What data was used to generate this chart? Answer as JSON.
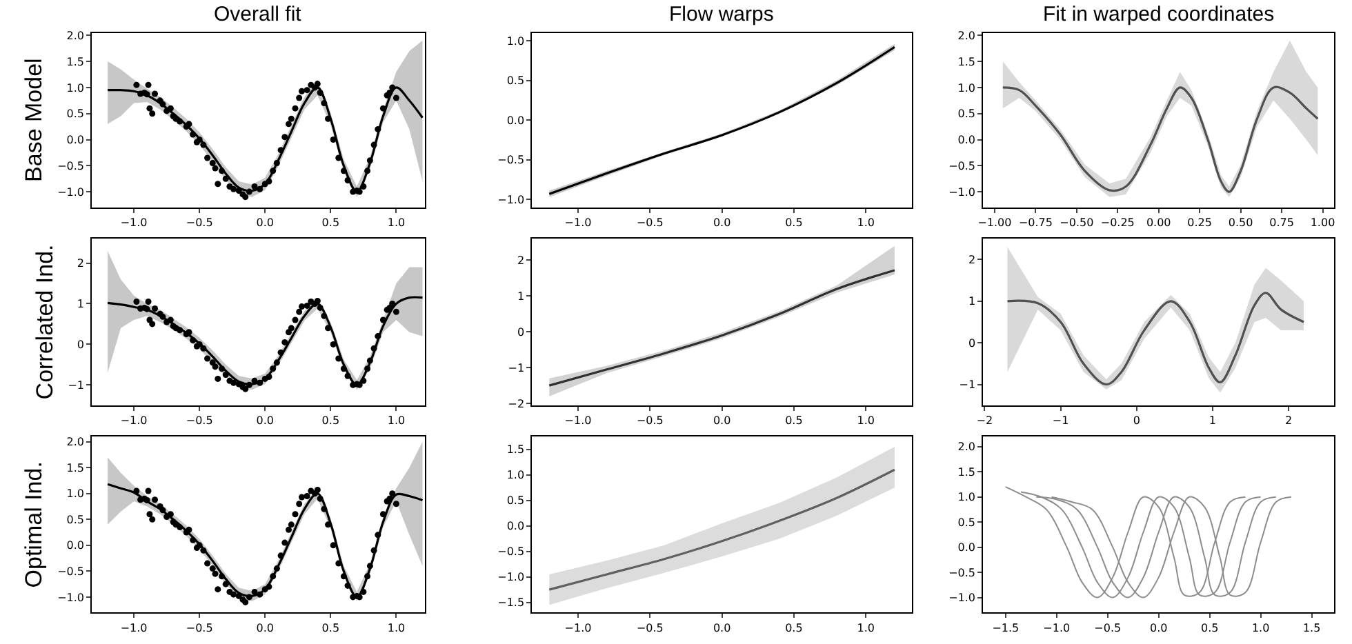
{
  "chart_data": [
    {
      "type": "line",
      "title": "Overall fit",
      "ylabel": "Base Model",
      "xlim": [
        -1.32,
        1.22
      ],
      "xticks": [
        {
          "value": -1,
          "label": "−1.0"
        },
        {
          "value": -0.5,
          "label": "−0.5"
        },
        {
          "value": 0,
          "label": "0.0"
        },
        {
          "value": 0.5,
          "label": "0.5"
        },
        {
          "value": 1,
          "label": "1.0"
        }
      ],
      "ylim": [
        -1.3,
        2.05
      ],
      "yticks": [
        {
          "value": -1,
          "label": "−1.0"
        },
        {
          "value": -0.5,
          "label": "−0.5"
        },
        {
          "value": 0,
          "label": "0.0"
        },
        {
          "value": 0.5,
          "label": "0.5"
        },
        {
          "value": 1,
          "label": "1.0"
        },
        {
          "value": 1.5,
          "label": "1.5"
        },
        {
          "value": 2,
          "label": "2.0"
        }
      ],
      "series": [
        {
          "color": "#000000",
          "x": [
            -1.2,
            -1.1,
            -1.0,
            -0.9,
            -0.8,
            -0.7,
            -0.6,
            -0.5,
            -0.4,
            -0.3,
            -0.2,
            -0.1,
            0.0,
            0.1,
            0.2,
            0.3,
            0.4,
            0.5,
            0.6,
            0.7,
            0.8,
            0.9,
            1.0,
            1.1,
            1.2
          ],
          "values": [
            0.95,
            0.95,
            0.93,
            0.85,
            0.7,
            0.5,
            0.28,
            0.02,
            -0.3,
            -0.65,
            -0.92,
            -0.98,
            -0.85,
            -0.4,
            0.15,
            0.7,
            1.0,
            0.4,
            -0.5,
            -1.0,
            -0.45,
            0.45,
            1.0,
            0.75,
            0.42
          ],
          "lower": [
            0.3,
            0.45,
            0.7,
            0.72,
            0.58,
            0.38,
            0.16,
            -0.1,
            -0.42,
            -0.77,
            -1.04,
            -1.1,
            -0.97,
            -0.52,
            0.03,
            0.58,
            0.85,
            0.28,
            -0.62,
            -1.1,
            -0.57,
            0.33,
            0.75,
            0.2,
            -0.8
          ],
          "upper": [
            1.5,
            1.35,
            1.15,
            0.98,
            0.82,
            0.62,
            0.4,
            0.14,
            -0.18,
            -0.53,
            -0.8,
            -0.86,
            -0.73,
            -0.28,
            0.27,
            0.82,
            1.15,
            0.52,
            -0.38,
            -0.9,
            -0.33,
            0.57,
            1.3,
            1.7,
            1.9
          ]
        },
        {
          "type": "scatter",
          "marker": "circle",
          "color": "#000000",
          "x": [
            -0.98,
            -0.95,
            -0.92,
            -0.9,
            -0.89,
            -0.88,
            -0.86,
            -0.84,
            -0.8,
            -0.78,
            -0.75,
            -0.72,
            -0.7,
            -0.68,
            -0.65,
            -0.6,
            -0.58,
            -0.55,
            -0.52,
            -0.5,
            -0.47,
            -0.44,
            -0.4,
            -0.38,
            -0.36,
            -0.33,
            -0.3,
            -0.27,
            -0.24,
            -0.2,
            -0.17,
            -0.15,
            -0.12,
            -0.08,
            -0.04,
            0.0,
            0.03,
            0.06,
            0.09,
            0.12,
            0.15,
            0.18,
            0.2,
            0.23,
            0.26,
            0.28,
            0.32,
            0.35,
            0.38,
            0.4,
            0.42,
            0.45,
            0.48,
            0.52,
            0.56,
            0.6,
            0.63,
            0.67,
            0.7,
            0.72,
            0.75,
            0.78,
            0.8,
            0.83,
            0.86,
            0.9,
            0.93,
            0.95,
            0.97,
            1.0
          ],
          "values": [
            1.05,
            0.88,
            0.9,
            0.87,
            1.05,
            0.6,
            0.5,
            0.88,
            0.75,
            0.68,
            0.55,
            0.6,
            0.45,
            0.4,
            0.35,
            0.25,
            0.3,
            0.1,
            -0.05,
            0.0,
            -0.1,
            -0.35,
            -0.45,
            -0.55,
            -0.85,
            -0.6,
            -0.75,
            -0.9,
            -0.95,
            -0.98,
            -1.05,
            -1.1,
            -1.0,
            -0.9,
            -0.95,
            -0.85,
            -0.8,
            -0.6,
            -0.45,
            -0.2,
            0.05,
            0.3,
            0.4,
            0.6,
            0.8,
            0.93,
            0.95,
            1.05,
            1.0,
            1.07,
            0.9,
            0.7,
            0.4,
            0.0,
            -0.35,
            -0.6,
            -0.78,
            -1.0,
            -0.98,
            -1.0,
            -0.9,
            -0.6,
            -0.4,
            -0.1,
            0.2,
            0.6,
            0.85,
            0.9,
            1.0,
            0.8
          ]
        }
      ]
    },
    {
      "type": "line",
      "title": "Flow warps",
      "xlim": [
        -1.32,
        1.32
      ],
      "xticks": [
        {
          "value": -1,
          "label": "−1.0"
        },
        {
          "value": -0.5,
          "label": "−0.5"
        },
        {
          "value": 0,
          "label": "0.0"
        },
        {
          "value": 0.5,
          "label": "0.5"
        },
        {
          "value": 1,
          "label": "1.0"
        }
      ],
      "ylim": [
        -1.1,
        1.1
      ],
      "yticks": [
        {
          "value": -1,
          "label": "−1.0"
        },
        {
          "value": -0.5,
          "label": "−0.5"
        },
        {
          "value": 0,
          "label": "0.0"
        },
        {
          "value": 0.5,
          "label": "0.5"
        },
        {
          "value": 1,
          "label": "1.0"
        }
      ],
      "series": [
        {
          "color": "#000000",
          "x": [
            -1.2,
            -0.8,
            -0.4,
            0.0,
            0.4,
            0.8,
            1.2
          ],
          "values": [
            -0.93,
            -0.67,
            -0.42,
            -0.19,
            0.1,
            0.47,
            0.92
          ],
          "lower": [
            -0.97,
            -0.7,
            -0.44,
            -0.21,
            0.08,
            0.44,
            0.88
          ],
          "upper": [
            -0.89,
            -0.64,
            -0.4,
            -0.17,
            0.12,
            0.5,
            0.96
          ]
        }
      ]
    },
    {
      "type": "line",
      "title": "Fit in warped coordinates",
      "xlim": [
        -1.07,
        1.07
      ],
      "xticks": [
        {
          "value": -1,
          "label": "−1.00"
        },
        {
          "value": -0.75,
          "label": "−0.75"
        },
        {
          "value": -0.5,
          "label": "−0.50"
        },
        {
          "value": -0.25,
          "label": "−0.25"
        },
        {
          "value": 0,
          "label": "0.00"
        },
        {
          "value": 0.25,
          "label": "0.25"
        },
        {
          "value": 0.5,
          "label": "0.50"
        },
        {
          "value": 0.75,
          "label": "0.75"
        },
        {
          "value": 1,
          "label": "1.00"
        }
      ],
      "ylim": [
        -1.3,
        2.05
      ],
      "yticks": [
        {
          "value": -1,
          "label": "−1.0"
        },
        {
          "value": -0.5,
          "label": "−0.5"
        },
        {
          "value": 0,
          "label": "0.0"
        },
        {
          "value": 0.5,
          "label": "0.5"
        },
        {
          "value": 1,
          "label": "1.0"
        },
        {
          "value": 1.5,
          "label": "1.5"
        },
        {
          "value": 2,
          "label": "2.0"
        }
      ],
      "series": [
        {
          "color": "#505050",
          "x": [
            -0.95,
            -0.85,
            -0.75,
            -0.6,
            -0.45,
            -0.3,
            -0.2,
            -0.05,
            0.05,
            0.13,
            0.2,
            0.3,
            0.38,
            0.43,
            0.5,
            0.6,
            0.7,
            0.8,
            0.9,
            0.97
          ],
          "values": [
            1.0,
            0.95,
            0.65,
            0.1,
            -0.6,
            -0.97,
            -0.9,
            -0.1,
            0.6,
            1.0,
            0.8,
            0.0,
            -0.8,
            -1.0,
            -0.6,
            0.4,
            1.0,
            0.9,
            0.6,
            0.4
          ],
          "lower": [
            0.6,
            0.8,
            0.55,
            0.0,
            -0.72,
            -1.1,
            -1.05,
            -0.25,
            0.45,
            0.8,
            0.65,
            -0.12,
            -0.92,
            -1.1,
            -0.72,
            0.25,
            0.75,
            0.4,
            0.0,
            -0.3
          ],
          "upper": [
            1.5,
            1.1,
            0.75,
            0.2,
            -0.48,
            -0.84,
            -0.75,
            0.05,
            0.75,
            1.3,
            0.95,
            0.12,
            -0.68,
            -0.9,
            -0.48,
            0.55,
            1.3,
            1.9,
            1.3,
            1.0
          ]
        }
      ]
    },
    {
      "type": "line",
      "ylabel": "Correlated Ind.",
      "xlim": [
        -1.32,
        1.22
      ],
      "xticks": [
        {
          "value": -1,
          "label": "−1.0"
        },
        {
          "value": -0.5,
          "label": "−0.5"
        },
        {
          "value": 0,
          "label": "0.0"
        },
        {
          "value": 0.5,
          "label": "0.5"
        },
        {
          "value": 1,
          "label": "1.0"
        }
      ],
      "ylim": [
        -1.5,
        2.6
      ],
      "yticks": [
        {
          "value": -1,
          "label": "−1"
        },
        0,
        1,
        2
      ],
      "series": [
        {
          "color": "#000000",
          "x": [
            -1.2,
            -1.1,
            -1.0,
            -0.9,
            -0.8,
            -0.7,
            -0.6,
            -0.5,
            -0.4,
            -0.3,
            -0.2,
            -0.1,
            0.0,
            0.1,
            0.2,
            0.3,
            0.4,
            0.5,
            0.6,
            0.7,
            0.8,
            0.9,
            1.0,
            1.1,
            1.2
          ],
          "values": [
            1.02,
            0.98,
            0.92,
            0.85,
            0.7,
            0.5,
            0.28,
            0.02,
            -0.3,
            -0.65,
            -0.92,
            -0.98,
            -0.85,
            -0.4,
            0.15,
            0.7,
            1.0,
            0.42,
            -0.5,
            -1.0,
            -0.45,
            0.45,
            1.0,
            1.15,
            1.15
          ],
          "lower": [
            -0.7,
            0.4,
            0.6,
            0.7,
            0.55,
            0.36,
            0.14,
            -0.12,
            -0.45,
            -0.8,
            -1.06,
            -1.12,
            -0.98,
            -0.52,
            0.03,
            0.58,
            0.88,
            0.3,
            -0.62,
            -1.12,
            -0.6,
            0.3,
            0.6,
            0.3,
            0.2
          ],
          "upper": [
            2.3,
            1.6,
            1.2,
            1.0,
            0.85,
            0.64,
            0.42,
            0.16,
            -0.15,
            -0.5,
            -0.78,
            -0.84,
            -0.72,
            -0.28,
            0.27,
            0.82,
            1.15,
            0.54,
            -0.38,
            -0.88,
            -0.3,
            0.6,
            1.5,
            1.9,
            1.9
          ]
        },
        {
          "type": "scatter",
          "marker": "circle",
          "color": "#000000",
          "x": [
            -0.98,
            -0.95,
            -0.92,
            -0.9,
            -0.89,
            -0.88,
            -0.86,
            -0.84,
            -0.8,
            -0.78,
            -0.75,
            -0.72,
            -0.7,
            -0.68,
            -0.65,
            -0.6,
            -0.58,
            -0.55,
            -0.52,
            -0.5,
            -0.47,
            -0.44,
            -0.4,
            -0.38,
            -0.36,
            -0.33,
            -0.3,
            -0.27,
            -0.24,
            -0.2,
            -0.17,
            -0.15,
            -0.12,
            -0.08,
            -0.04,
            0.0,
            0.03,
            0.06,
            0.09,
            0.12,
            0.15,
            0.18,
            0.2,
            0.23,
            0.26,
            0.28,
            0.32,
            0.35,
            0.38,
            0.4,
            0.42,
            0.45,
            0.48,
            0.52,
            0.56,
            0.6,
            0.63,
            0.67,
            0.7,
            0.72,
            0.75,
            0.78,
            0.8,
            0.83,
            0.86,
            0.9,
            0.93,
            0.95,
            0.97,
            1.0
          ],
          "values": [
            1.05,
            0.88,
            0.9,
            0.87,
            1.05,
            0.6,
            0.5,
            0.88,
            0.75,
            0.68,
            0.55,
            0.6,
            0.45,
            0.4,
            0.35,
            0.25,
            0.3,
            0.1,
            -0.05,
            0.0,
            -0.1,
            -0.35,
            -0.45,
            -0.55,
            -0.85,
            -0.6,
            -0.75,
            -0.9,
            -0.95,
            -0.98,
            -1.05,
            -1.1,
            -1.0,
            -0.9,
            -0.95,
            -0.85,
            -0.8,
            -0.6,
            -0.45,
            -0.2,
            0.05,
            0.3,
            0.4,
            0.6,
            0.8,
            0.93,
            0.95,
            1.05,
            1.0,
            1.07,
            0.9,
            0.7,
            0.4,
            0.0,
            -0.35,
            -0.6,
            -0.78,
            -1.0,
            -0.98,
            -1.0,
            -0.9,
            -0.6,
            -0.4,
            -0.1,
            0.2,
            0.6,
            0.85,
            0.9,
            1.0,
            0.8
          ]
        }
      ]
    },
    {
      "type": "line",
      "xlim": [
        -1.32,
        1.32
      ],
      "xticks": [
        {
          "value": -1,
          "label": "−1.0"
        },
        {
          "value": -0.5,
          "label": "−0.5"
        },
        {
          "value": 0,
          "label": "0.0"
        },
        {
          "value": 0.5,
          "label": "0.5"
        },
        {
          "value": 1,
          "label": "1.0"
        }
      ],
      "ylim": [
        -2.05,
        2.6
      ],
      "yticks": [
        {
          "value": -2,
          "label": "−2"
        },
        {
          "value": -1,
          "label": "−1"
        },
        0,
        1,
        2
      ],
      "series": [
        {
          "color": "#303030",
          "x": [
            -1.2,
            -0.8,
            -0.4,
            0.0,
            0.4,
            0.8,
            1.2
          ],
          "values": [
            -1.5,
            -1.05,
            -0.6,
            -0.1,
            0.5,
            1.2,
            1.72
          ],
          "lower": [
            -1.8,
            -1.15,
            -0.68,
            -0.18,
            0.42,
            1.1,
            1.6
          ],
          "upper": [
            -1.3,
            -0.95,
            -0.52,
            -0.02,
            0.58,
            1.3,
            2.4
          ]
        }
      ]
    },
    {
      "type": "line",
      "xlim": [
        -2.02,
        2.6
      ],
      "xticks": [
        {
          "value": -2,
          "label": "−2"
        },
        {
          "value": -1,
          "label": "−1"
        },
        0,
        1,
        2
      ],
      "ylim": [
        -1.5,
        2.5
      ],
      "yticks": [
        {
          "value": -1,
          "label": "−1"
        },
        0,
        1,
        2
      ],
      "series": [
        {
          "color": "#505050",
          "x": [
            -1.7,
            -1.3,
            -1.0,
            -0.7,
            -0.4,
            -0.2,
            0.1,
            0.45,
            0.7,
            0.95,
            1.1,
            1.3,
            1.55,
            1.7,
            1.9,
            2.2
          ],
          "values": [
            1.0,
            0.95,
            0.5,
            -0.5,
            -1.0,
            -0.7,
            0.3,
            1.0,
            0.5,
            -0.6,
            -0.95,
            -0.3,
            0.9,
            1.2,
            0.8,
            0.5
          ],
          "lower": [
            -0.7,
            0.8,
            0.3,
            -0.7,
            -1.12,
            -0.9,
            0.1,
            0.85,
            0.3,
            -0.85,
            -1.2,
            -0.6,
            0.5,
            0.6,
            0.3,
            0.3
          ],
          "upper": [
            2.3,
            1.1,
            0.7,
            -0.3,
            -0.88,
            -0.5,
            0.5,
            1.15,
            0.7,
            -0.35,
            -0.7,
            0.0,
            1.4,
            1.8,
            1.5,
            1.0
          ]
        }
      ]
    },
    {
      "type": "line",
      "ylabel": "Optimal Ind.",
      "xlim": [
        -1.32,
        1.22
      ],
      "xticks": [
        {
          "value": -1,
          "label": "−1.0"
        },
        {
          "value": -0.5,
          "label": "−0.5"
        },
        {
          "value": 0,
          "label": "0.0"
        },
        {
          "value": 0.5,
          "label": "0.5"
        },
        {
          "value": 1,
          "label": "1.0"
        }
      ],
      "ylim": [
        -1.3,
        2.1
      ],
      "yticks": [
        {
          "value": -1,
          "label": "−1.0"
        },
        {
          "value": -0.5,
          "label": "−0.5"
        },
        {
          "value": 0,
          "label": "0.0"
        },
        {
          "value": 0.5,
          "label": "0.5"
        },
        {
          "value": 1,
          "label": "1.0"
        },
        {
          "value": 1.5,
          "label": "1.5"
        },
        {
          "value": 2,
          "label": "2.0"
        }
      ],
      "series": [
        {
          "color": "#000000",
          "x": [
            -1.2,
            -1.1,
            -1.0,
            -0.9,
            -0.8,
            -0.7,
            -0.6,
            -0.5,
            -0.4,
            -0.3,
            -0.2,
            -0.1,
            0.0,
            0.1,
            0.2,
            0.3,
            0.4,
            0.5,
            0.6,
            0.7,
            0.8,
            0.9,
            1.0,
            1.1,
            1.2
          ],
          "values": [
            1.18,
            1.1,
            1.02,
            0.85,
            0.7,
            0.5,
            0.28,
            0.02,
            -0.3,
            -0.65,
            -0.92,
            -0.98,
            -0.85,
            -0.4,
            0.15,
            0.7,
            1.0,
            0.42,
            -0.5,
            -1.0,
            -0.45,
            0.45,
            0.98,
            0.95,
            0.87
          ],
          "lower": [
            0.4,
            0.65,
            0.85,
            0.75,
            0.6,
            0.4,
            0.18,
            -0.08,
            -0.4,
            -0.75,
            -1.02,
            -1.08,
            -0.95,
            -0.5,
            0.05,
            0.6,
            0.9,
            0.32,
            -0.6,
            -1.08,
            -0.55,
            0.35,
            0.85,
            0.2,
            -0.4
          ],
          "upper": [
            1.7,
            1.4,
            1.15,
            0.95,
            0.8,
            0.6,
            0.38,
            0.12,
            -0.2,
            -0.55,
            -0.82,
            -0.88,
            -0.75,
            -0.3,
            0.25,
            0.8,
            1.1,
            0.52,
            -0.4,
            -0.9,
            -0.35,
            0.55,
            1.1,
            1.5,
            2.0
          ]
        },
        {
          "type": "scatter",
          "marker": "circle",
          "color": "#000000",
          "x": [
            -0.98,
            -0.95,
            -0.92,
            -0.9,
            -0.89,
            -0.88,
            -0.86,
            -0.84,
            -0.8,
            -0.78,
            -0.75,
            -0.72,
            -0.7,
            -0.68,
            -0.65,
            -0.6,
            -0.58,
            -0.55,
            -0.52,
            -0.5,
            -0.47,
            -0.44,
            -0.4,
            -0.38,
            -0.36,
            -0.33,
            -0.3,
            -0.27,
            -0.24,
            -0.2,
            -0.17,
            -0.15,
            -0.12,
            -0.08,
            -0.04,
            0.0,
            0.03,
            0.06,
            0.09,
            0.12,
            0.15,
            0.18,
            0.2,
            0.23,
            0.26,
            0.28,
            0.32,
            0.35,
            0.38,
            0.4,
            0.42,
            0.45,
            0.48,
            0.52,
            0.56,
            0.6,
            0.63,
            0.67,
            0.7,
            0.72,
            0.75,
            0.78,
            0.8,
            0.83,
            0.86,
            0.9,
            0.93,
            0.95,
            0.97,
            1.0
          ],
          "values": [
            1.05,
            0.88,
            0.9,
            0.87,
            1.05,
            0.6,
            0.5,
            0.88,
            0.75,
            0.68,
            0.55,
            0.6,
            0.45,
            0.4,
            0.35,
            0.25,
            0.3,
            0.1,
            -0.05,
            0.0,
            -0.1,
            -0.35,
            -0.45,
            -0.55,
            -0.85,
            -0.6,
            -0.75,
            -0.9,
            -0.95,
            -0.98,
            -1.05,
            -1.1,
            -1.0,
            -0.9,
            -0.95,
            -0.85,
            -0.8,
            -0.6,
            -0.45,
            -0.2,
            0.05,
            0.3,
            0.4,
            0.6,
            0.8,
            0.93,
            0.95,
            1.05,
            1.0,
            1.07,
            0.9,
            0.7,
            0.4,
            0.0,
            -0.35,
            -0.6,
            -0.78,
            -1.0,
            -0.98,
            -1.0,
            -0.9,
            -0.6,
            -0.4,
            -0.1,
            0.2,
            0.6,
            0.85,
            0.9,
            1.0,
            0.8
          ]
        }
      ]
    },
    {
      "type": "line",
      "xlim": [
        -1.32,
        1.32
      ],
      "xticks": [
        {
          "value": -1,
          "label": "−1.0"
        },
        {
          "value": -0.5,
          "label": "−0.5"
        },
        {
          "value": 0,
          "label": "0.0"
        },
        {
          "value": 0.5,
          "label": "0.5"
        },
        {
          "value": 1,
          "label": "1.0"
        }
      ],
      "ylim": [
        -1.7,
        1.75
      ],
      "yticks": [
        {
          "value": -1.5,
          "label": "−1.5"
        },
        {
          "value": -1,
          "label": "−1.0"
        },
        {
          "value": -0.5,
          "label": "−0.5"
        },
        {
          "value": 0,
          "label": "0.0"
        },
        {
          "value": 0.5,
          "label": "0.5"
        },
        {
          "value": 1,
          "label": "1.0"
        },
        {
          "value": 1.5,
          "label": "1.5"
        }
      ],
      "series": [
        {
          "color": "#606060",
          "x": [
            -1.2,
            -0.8,
            -0.4,
            0.0,
            0.4,
            0.8,
            1.2
          ],
          "values": [
            -1.25,
            -0.95,
            -0.65,
            -0.3,
            0.1,
            0.55,
            1.1
          ],
          "lower": [
            -1.55,
            -1.22,
            -0.92,
            -0.6,
            -0.25,
            0.2,
            0.75
          ],
          "upper": [
            -0.95,
            -0.68,
            -0.38,
            0.05,
            0.45,
            0.95,
            1.55
          ]
        }
      ]
    },
    {
      "type": "line",
      "xlim": [
        -1.72,
        1.72
      ],
      "xticks": [
        {
          "value": -1.5,
          "label": "−1.5"
        },
        {
          "value": -1,
          "label": "−1.0"
        },
        {
          "value": -0.5,
          "label": "−0.5"
        },
        {
          "value": 0,
          "label": "0.0"
        },
        {
          "value": 0.5,
          "label": "0.5"
        },
        {
          "value": 1,
          "label": "1.0"
        },
        {
          "value": 1.5,
          "label": "1.5"
        }
      ],
      "ylim": [
        -1.3,
        2.2
      ],
      "yticks": [
        {
          "value": -1,
          "label": "−1.0"
        },
        {
          "value": -0.5,
          "label": "−0.5"
        },
        {
          "value": 0,
          "label": "0.0"
        },
        {
          "value": 0.5,
          "label": "0.5"
        },
        {
          "value": 1,
          "label": "1.0"
        },
        {
          "value": 1.5,
          "label": "1.5"
        },
        {
          "value": 2,
          "label": "2.0"
        }
      ],
      "series": [
        {
          "color": "#8c8c8c",
          "x": [
            -1.5,
            -1.3,
            -1.1,
            -0.9,
            -0.75,
            -0.6,
            -0.45,
            -0.3,
            -0.15,
            0.0,
            0.15,
            0.25,
            0.4,
            0.55,
            0.7,
            0.85
          ],
          "values": [
            1.2,
            1.0,
            0.75,
            0.0,
            -0.7,
            -1.0,
            -0.6,
            0.3,
            1.0,
            0.8,
            -0.2,
            -0.95,
            -0.9,
            0.1,
            0.9,
            1.0
          ]
        },
        {
          "color": "#8c8c8c",
          "x": [
            -1.35,
            -1.15,
            -0.95,
            -0.75,
            -0.6,
            -0.45,
            -0.3,
            -0.15,
            0.0,
            0.15,
            0.3,
            0.4,
            0.55,
            0.7,
            0.85,
            1.0
          ],
          "values": [
            1.1,
            1.0,
            0.75,
            0.0,
            -0.7,
            -1.0,
            -0.6,
            0.3,
            1.0,
            0.8,
            -0.2,
            -0.95,
            -0.9,
            0.1,
            0.9,
            1.0
          ]
        },
        {
          "color": "#8c8c8c",
          "x": [
            -1.2,
            -1.0,
            -0.8,
            -0.6,
            -0.45,
            -0.3,
            -0.15,
            0.0,
            0.15,
            0.3,
            0.45,
            0.55,
            0.7,
            0.85,
            1.0,
            1.15
          ],
          "values": [
            1.0,
            0.95,
            0.75,
            0.0,
            -0.7,
            -1.0,
            -0.6,
            0.3,
            1.0,
            0.8,
            -0.2,
            -0.95,
            -0.9,
            0.1,
            0.9,
            1.0
          ]
        },
        {
          "color": "#8c8c8c",
          "x": [
            -1.05,
            -0.85,
            -0.65,
            -0.45,
            -0.3,
            -0.15,
            0.0,
            0.15,
            0.3,
            0.45,
            0.6,
            0.7,
            0.85,
            1.0,
            1.15,
            1.3
          ],
          "values": [
            1.0,
            0.9,
            0.75,
            0.0,
            -0.7,
            -1.0,
            -0.6,
            0.3,
            1.0,
            0.8,
            -0.2,
            -0.95,
            -0.9,
            0.1,
            0.9,
            1.0
          ]
        }
      ]
    }
  ]
}
